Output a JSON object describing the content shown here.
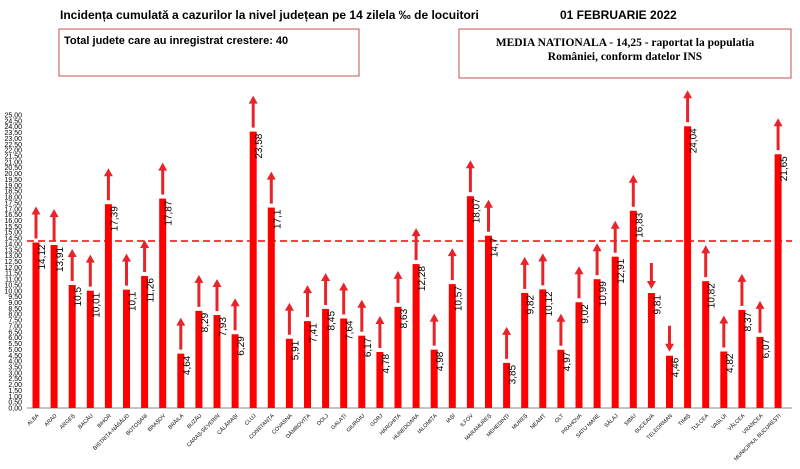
{
  "header": {
    "title": "Incidența cumulată a cazurilor la nivel județean pe 14 zilela ‰ de locuitori",
    "date": "01 FEBRUARIE 2022"
  },
  "notes": {
    "left": "Total judete care au inregistrat crestere: 40",
    "right_line1": "MEDIA NATIONALA  - 14,25 -  raportat la populatia",
    "right_line2": "României, conform datelor INS"
  },
  "colors": {
    "bar": "#ff0000",
    "arrow": "#e8242a",
    "reference_line": "#ff0000",
    "box_border": "#c0504d"
  },
  "chart_data": {
    "type": "bar",
    "title": "Incidența cumulată a cazurilor la nivel județean pe 14 zilela ‰ de locuitori",
    "xlabel": "",
    "ylabel": "",
    "ylim": [
      0,
      25
    ],
    "y_tick_step": 0.5,
    "y_ticks": [
      "0,00",
      "0,50",
      "1,00",
      "1,50",
      "2,00",
      "2,50",
      "3,00",
      "3,50",
      "4,00",
      "4,50",
      "5,00",
      "5,50",
      "6,00",
      "6,50",
      "7,00",
      "7,50",
      "8,00",
      "8,50",
      "9,00",
      "9,50",
      "10,00",
      "10,50",
      "11,00",
      "11,50",
      "12,00",
      "12,50",
      "13,00",
      "13,50",
      "14,00",
      "14,50",
      "15,00",
      "15,50",
      "16,00",
      "16,50",
      "17,00",
      "17,50",
      "18,00",
      "18,50",
      "19,00",
      "19,50",
      "20,00",
      "20,50",
      "21,00",
      "21,50",
      "22,00",
      "22,50",
      "23,00",
      "23,50",
      "24,00",
      "24,50",
      "25,00"
    ],
    "grid": false,
    "reference_line": {
      "value": 14.25
    },
    "categories": [
      "ALBA",
      "ARAD",
      "ARGEȘ",
      "BACĂU",
      "BIHOR",
      "BISTRIȚA-NĂSĂUD",
      "BOTOȘANI",
      "BRAȘOV",
      "BRĂILA",
      "BUZĂU",
      "CARAȘ-SEVERIN",
      "CĂLĂRAȘI",
      "CLUJ",
      "CONSTANȚA",
      "COVASNA",
      "DÂMBOVIȚA",
      "DOLJ",
      "GALAȚI",
      "GIURGIU",
      "GORJ",
      "HARGHITA",
      "HUNEDOARA",
      "IALOMIȚA",
      "IAȘI",
      "ILFOV",
      "MARAMUREȘ",
      "MEHEDINȚI",
      "MUREȘ",
      "NEAMȚ",
      "OLT",
      "PRAHOVA",
      "SATU MARE",
      "SĂLAJ",
      "SIBIU",
      "SUCEAVA",
      "TELEORMAN",
      "TIMIȘ",
      "TULCEA",
      "VASLUI",
      "VÂLCEA",
      "VRANCEA",
      "MUNICIPIUL BUCUREȘTI"
    ],
    "values": [
      14.12,
      13.91,
      10.5,
      10.01,
      17.39,
      10.1,
      11.26,
      17.87,
      4.64,
      8.29,
      7.93,
      6.29,
      23.58,
      17.1,
      5.91,
      7.41,
      8.45,
      7.64,
      6.17,
      4.78,
      8.63,
      12.28,
      4.98,
      10.57,
      18.07,
      14.7,
      3.85,
      9.82,
      10.12,
      4.97,
      9.02,
      10.99,
      12.91,
      16.83,
      9.81,
      4.46,
      24.04,
      10.82,
      4.82,
      8.37,
      6.07,
      21.65
    ],
    "value_labels": [
      "14,12",
      "13,91",
      "10,5",
      "10,01",
      "17,39",
      "10,1",
      "11,26",
      "17,87",
      "4,64",
      "8,29",
      "7,93",
      "6,29",
      "23,58",
      "17,1",
      "5,91",
      "7,41",
      "8,45",
      "7,64",
      "6,17",
      "4,78",
      "8,63",
      "12,28",
      "4,98",
      "10,57",
      "18,07",
      "14,7",
      "3,85",
      "9,82",
      "10,12",
      "4,97",
      "9,02",
      "10,99",
      "12,91",
      "16,83",
      "9,81",
      "4,46",
      "24,04",
      "10,82",
      "4,82",
      "8,37",
      "6,07",
      "21,65"
    ],
    "trend": [
      "up",
      "up",
      "up",
      "up",
      "up",
      "up",
      "up",
      "up",
      "up",
      "up",
      "up",
      "up",
      "up",
      "up",
      "up",
      "up",
      "up",
      "up",
      "up",
      "up",
      "up",
      "up",
      "up",
      "up",
      "up",
      "up",
      "up",
      "up",
      "up",
      "up",
      "up",
      "up",
      "up",
      "up",
      "down",
      "down",
      "up",
      "up",
      "up",
      "up",
      "up",
      "up"
    ]
  }
}
